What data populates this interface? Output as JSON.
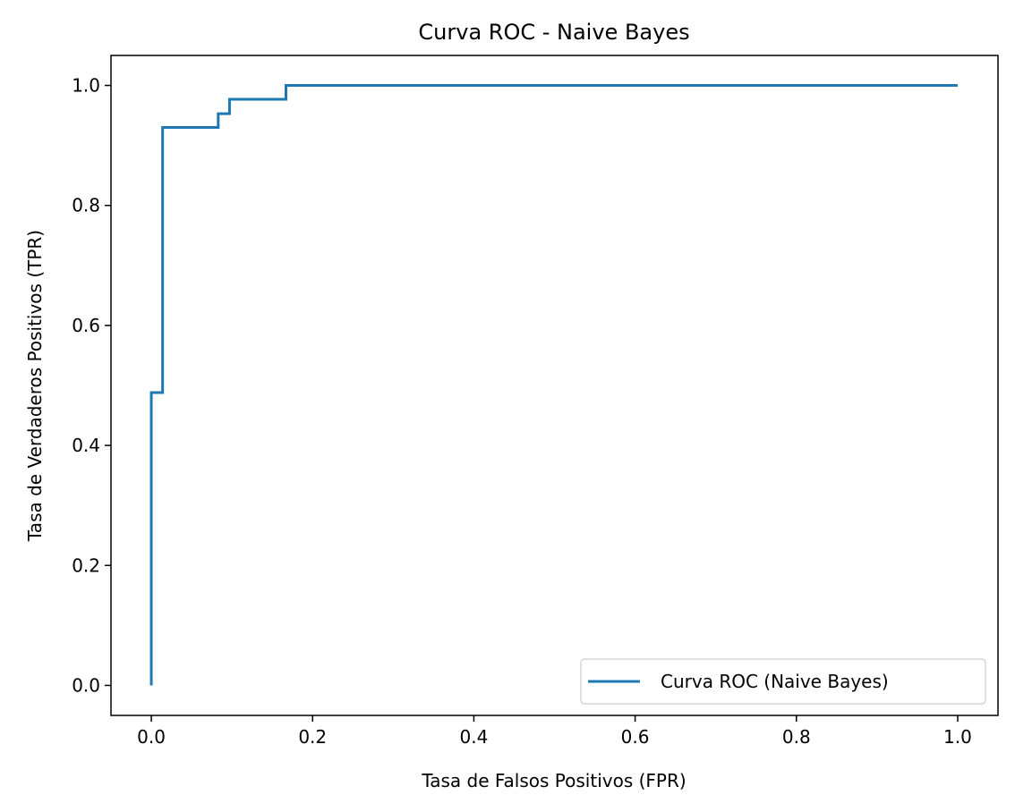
{
  "chart_data": {
    "type": "line",
    "title": "Curva ROC - Naive Bayes",
    "xlabel": "Tasa de Falsos Positivos (FPR)",
    "ylabel": "Tasa de Verdaderos Positivos (TPR)",
    "xlim": [
      -0.05,
      1.05
    ],
    "ylim": [
      -0.05,
      1.05
    ],
    "xticks": [
      0.0,
      0.2,
      0.4,
      0.6,
      0.8,
      1.0
    ],
    "xtick_labels": [
      "0.0",
      "0.2",
      "0.4",
      "0.6",
      "0.8",
      "1.0"
    ],
    "yticks": [
      0.0,
      0.2,
      0.4,
      0.6,
      0.8,
      1.0
    ],
    "ytick_labels": [
      "0.0",
      "0.2",
      "0.4",
      "0.6",
      "0.8",
      "1.0"
    ],
    "grid": false,
    "legend_position": "lower right",
    "series": [
      {
        "name": "Curva ROC (Naive Bayes)",
        "color": "#1f77b4",
        "x": [
          0.0,
          0.0,
          0.014,
          0.014,
          0.083,
          0.083,
          0.097,
          0.097,
          0.167,
          0.167,
          1.0
        ],
        "y": [
          0.0,
          0.488,
          0.488,
          0.93,
          0.93,
          0.953,
          0.953,
          0.977,
          0.977,
          1.0,
          1.0
        ]
      }
    ]
  }
}
